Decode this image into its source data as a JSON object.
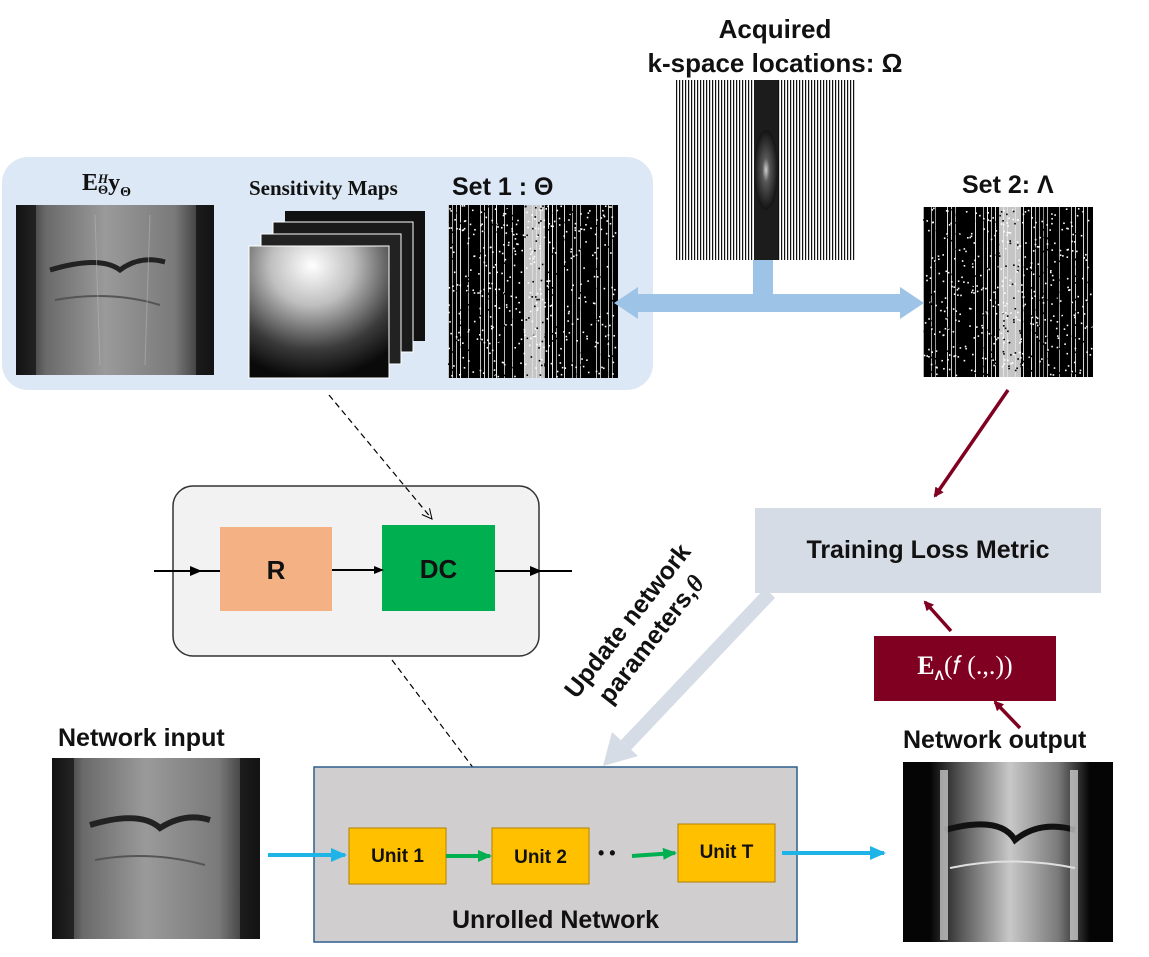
{
  "top": {
    "acquired_label_line1": "Acquired",
    "acquired_label_line2": "k-space locations: Ω",
    "set2_label": "Set 2: Λ"
  },
  "panel": {
    "eh_label_main": "E",
    "eh_label_sup": "H",
    "eh_label_sub": "Θ",
    "eh_label_y": "y",
    "eh_label_ysub": "Θ",
    "sensitivity_label": "Sensitivity Maps",
    "set1_label": "Set 1 : Θ"
  },
  "unit_block": {
    "r_label": "R",
    "dc_label": "DC"
  },
  "loss": {
    "label": "Training Loss Metric",
    "operator_E": "E",
    "operator_sub": "Λ",
    "operator_rest": "(𝑓 (.,.))"
  },
  "update": {
    "line1": "Update network",
    "line2": "parameters,",
    "theta": "θ"
  },
  "bottom": {
    "network_input_label": "Network input",
    "network_output_label": "Network output",
    "unit1_label": "Unit 1",
    "unit2_label": "Unit 2",
    "ellipsis": "• •",
    "unitT_label": "Unit T",
    "unrolled_label": "Unrolled Network"
  },
  "colors": {
    "panel_bg": "#dce8f5",
    "r_block": "#f4b183",
    "dc_block": "#00b050",
    "unit_block": "#ffc000",
    "loss_box": "#d6dce5",
    "operator_box": "#7f0020",
    "dark_red": "#7f0020",
    "cyan_arrow": "#1fb4e8",
    "light_blue_arrow": "#9dc3e6"
  }
}
